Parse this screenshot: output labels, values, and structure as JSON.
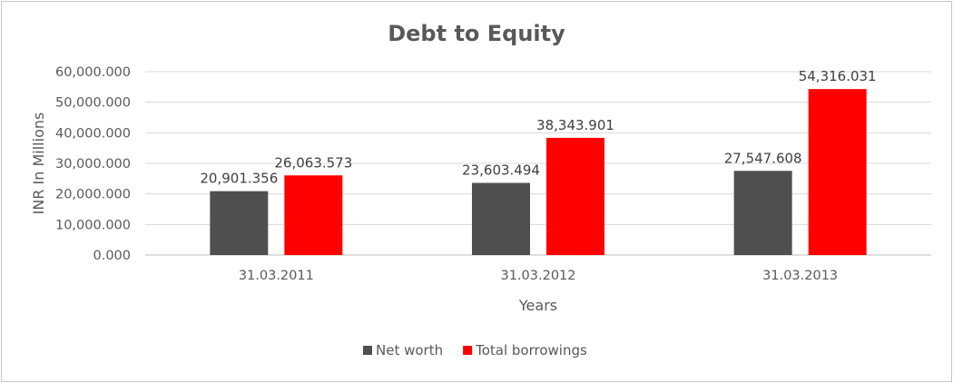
{
  "chart_data": {
    "type": "bar",
    "title": "Debt to Equity",
    "xlabel": "Years",
    "ylabel": "INR In Millions",
    "categories": [
      "31.03.2011",
      "31.03.2012",
      "31.03.2013"
    ],
    "series": [
      {
        "name": "Net worth",
        "color": "#4f4f4f",
        "values": [
          20901.356,
          23603.494,
          27547.608
        ],
        "labels": [
          "20,901.356",
          "23,603.494",
          "27,547.608"
        ]
      },
      {
        "name": "Total borrowings",
        "color": "#ff0000",
        "values": [
          26063.573,
          38343.901,
          54316.031
        ],
        "labels": [
          "26,063.573",
          "38,343.901",
          "54,316.031"
        ]
      }
    ],
    "ylim": [
      0,
      60000
    ],
    "yticks": [
      0,
      10000,
      20000,
      30000,
      40000,
      50000,
      60000
    ],
    "ytick_labels": [
      "0.000",
      "10,000.000",
      "20,000.000",
      "30,000.000",
      "40,000.000",
      "50,000.000",
      "60,000.000"
    ],
    "grid": true,
    "legend_position": "bottom"
  }
}
